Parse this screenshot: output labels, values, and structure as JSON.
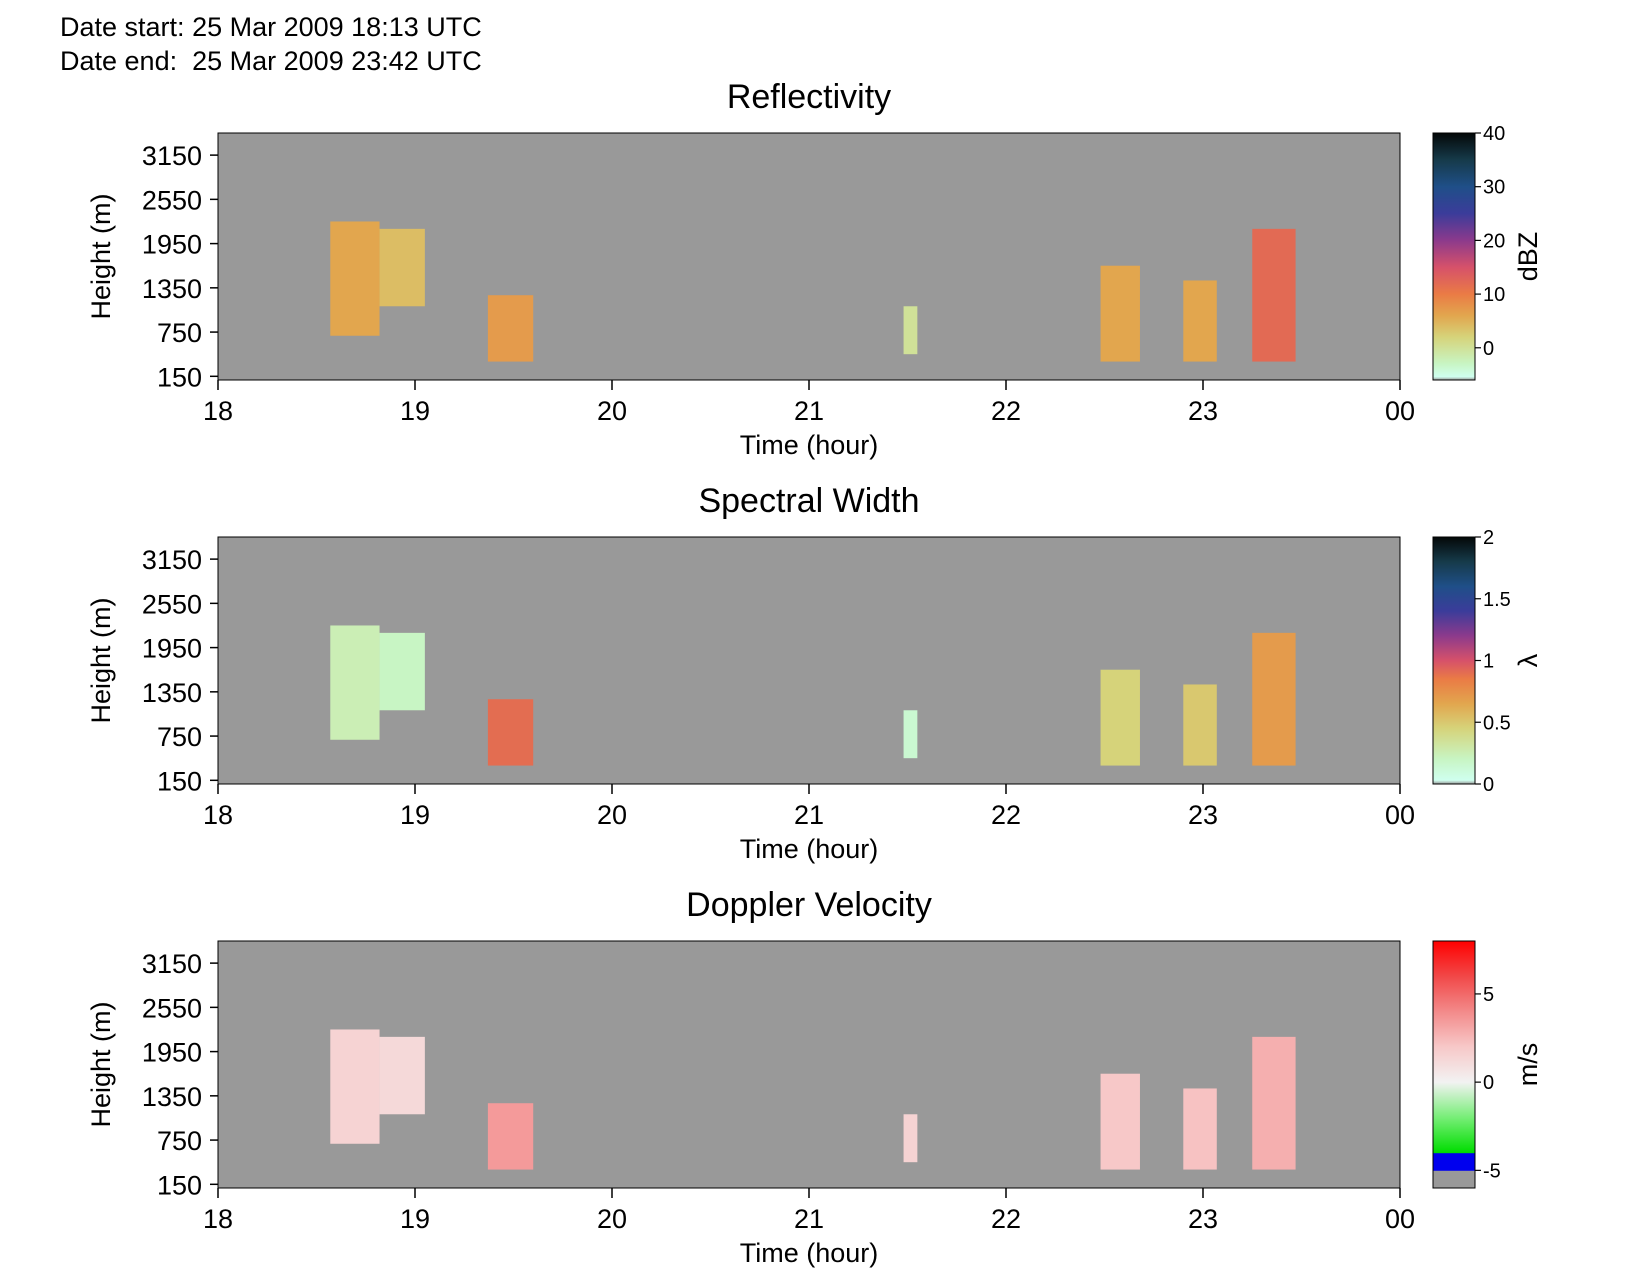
{
  "header": {
    "start_label": "Date start:",
    "start_value": "25 Mar 2009 18:13 UTC",
    "end_label": "Date end:",
    "end_value": "25 Mar 2009 23:42 UTC"
  },
  "colors": {
    "background": "#999999",
    "frame": "#000000",
    "no_data": "#999999"
  },
  "chart_data": [
    {
      "type": "heatmap",
      "title": "Reflectivity",
      "xlabel": "Time (hour)",
      "ylabel": "Height (m)",
      "xticks": [
        "18",
        "19",
        "20",
        "21",
        "22",
        "23",
        "00"
      ],
      "yticks": [
        "3150",
        "2550",
        "1950",
        "1350",
        "750",
        "150"
      ],
      "xlim": [
        18,
        24
      ],
      "ylim": [
        100,
        3450
      ],
      "colorbar": {
        "label": "dBZ",
        "ticks": [
          "40",
          "30",
          "20",
          "10",
          "0"
        ],
        "range": [
          -6,
          40
        ],
        "stops": [
          {
            "v": -6,
            "c": "#999999"
          },
          {
            "v": -5.4,
            "c": "#cfffef"
          },
          {
            "v": -3,
            "c": "#c8f5c4"
          },
          {
            "v": 2,
            "c": "#d6d37a"
          },
          {
            "v": 6,
            "c": "#e2a64e"
          },
          {
            "v": 10,
            "c": "#ea7b45"
          },
          {
            "v": 15,
            "c": "#d6516a"
          },
          {
            "v": 20,
            "c": "#8c3a8c"
          },
          {
            "v": 25,
            "c": "#3b3c9a"
          },
          {
            "v": 30,
            "c": "#1f4f88"
          },
          {
            "v": 35,
            "c": "#163a4a"
          },
          {
            "v": 40,
            "c": "#040808"
          }
        ]
      },
      "echo_regions": [
        {
          "t_start": 18.57,
          "t_end": 18.82,
          "h_bottom": 700,
          "h_top": 2250,
          "value": 6
        },
        {
          "t_start": 18.82,
          "t_end": 19.05,
          "h_bottom": 1100,
          "h_top": 2150,
          "value": 4
        },
        {
          "t_start": 19.37,
          "t_end": 19.6,
          "h_bottom": 350,
          "h_top": 1250,
          "value": 7
        },
        {
          "t_start": 21.48,
          "t_end": 21.55,
          "h_bottom": 450,
          "h_top": 1100,
          "value": 0
        },
        {
          "t_start": 22.48,
          "t_end": 22.68,
          "h_bottom": 350,
          "h_top": 1650,
          "value": 6
        },
        {
          "t_start": 22.9,
          "t_end": 23.07,
          "h_bottom": 350,
          "h_top": 1450,
          "value": 6
        },
        {
          "t_start": 23.25,
          "t_end": 23.47,
          "h_bottom": 350,
          "h_top": 2150,
          "value": 12
        }
      ]
    },
    {
      "type": "heatmap",
      "title": "Spectral Width",
      "xlabel": "Time (hour)",
      "ylabel": "Height (m)",
      "xticks": [
        "18",
        "19",
        "20",
        "21",
        "22",
        "23",
        "00"
      ],
      "yticks": [
        "3150",
        "2550",
        "1950",
        "1350",
        "750",
        "150"
      ],
      "xlim": [
        18,
        24
      ],
      "ylim": [
        100,
        3450
      ],
      "colorbar": {
        "label": "λ",
        "ticks": [
          "2",
          "1.5",
          "1",
          "0.5",
          "0"
        ],
        "range": [
          0,
          2
        ],
        "stops": [
          {
            "v": 0,
            "c": "#999999"
          },
          {
            "v": 0.03,
            "c": "#cfffef"
          },
          {
            "v": 0.2,
            "c": "#c8f5c4"
          },
          {
            "v": 0.45,
            "c": "#d6d37a"
          },
          {
            "v": 0.65,
            "c": "#e2a64e"
          },
          {
            "v": 0.85,
            "c": "#ea7b45"
          },
          {
            "v": 1.0,
            "c": "#d6516a"
          },
          {
            "v": 1.2,
            "c": "#8c3a8c"
          },
          {
            "v": 1.4,
            "c": "#3b3c9a"
          },
          {
            "v": 1.6,
            "c": "#1f4f88"
          },
          {
            "v": 1.8,
            "c": "#163a4a"
          },
          {
            "v": 2.0,
            "c": "#040808"
          }
        ]
      },
      "echo_regions": [
        {
          "t_start": 18.57,
          "t_end": 18.82,
          "h_bottom": 700,
          "h_top": 2250,
          "value": 0.25
        },
        {
          "t_start": 18.82,
          "t_end": 19.05,
          "h_bottom": 1100,
          "h_top": 2150,
          "value": 0.2
        },
        {
          "t_start": 19.37,
          "t_end": 19.6,
          "h_bottom": 350,
          "h_top": 1250,
          "value": 0.9
        },
        {
          "t_start": 21.48,
          "t_end": 21.55,
          "h_bottom": 450,
          "h_top": 1100,
          "value": 0.15
        },
        {
          "t_start": 22.48,
          "t_end": 22.68,
          "h_bottom": 350,
          "h_top": 1650,
          "value": 0.45
        },
        {
          "t_start": 22.9,
          "t_end": 23.07,
          "h_bottom": 350,
          "h_top": 1450,
          "value": 0.5
        },
        {
          "t_start": 23.25,
          "t_end": 23.47,
          "h_bottom": 350,
          "h_top": 2150,
          "value": 0.7
        }
      ]
    },
    {
      "type": "heatmap",
      "title": "Doppler Velocity",
      "xlabel": "Time (hour)",
      "ylabel": "Height (m)",
      "xticks": [
        "18",
        "19",
        "20",
        "21",
        "22",
        "23",
        "00"
      ],
      "yticks": [
        "3150",
        "2550",
        "1950",
        "1350",
        "750",
        "150"
      ],
      "xlim": [
        18,
        24
      ],
      "ylim": [
        100,
        3450
      ],
      "colorbar": {
        "label": "m/s",
        "ticks": [
          "5",
          "0",
          "-5"
        ],
        "range": [
          -6,
          8
        ],
        "stops": [
          {
            "v": -6,
            "c": "#999999"
          },
          {
            "v": -5.05,
            "c": "#999999"
          },
          {
            "v": -5,
            "c": "#0000ee"
          },
          {
            "v": -4.05,
            "c": "#0000ee"
          },
          {
            "v": -4,
            "c": "#00dd00"
          },
          {
            "v": -2,
            "c": "#77ee77"
          },
          {
            "v": 0,
            "c": "#f2f2f2"
          },
          {
            "v": 2,
            "c": "#f7c8c8"
          },
          {
            "v": 4,
            "c": "#f38a8a"
          },
          {
            "v": 6,
            "c": "#f14848"
          },
          {
            "v": 8,
            "c": "#ff0000"
          }
        ]
      },
      "echo_regions": [
        {
          "t_start": 18.57,
          "t_end": 18.82,
          "h_bottom": 700,
          "h_top": 2250,
          "value": 1.5
        },
        {
          "t_start": 18.82,
          "t_end": 19.05,
          "h_bottom": 1100,
          "h_top": 2150,
          "value": 1.2
        },
        {
          "t_start": 19.37,
          "t_end": 19.6,
          "h_bottom": 350,
          "h_top": 1250,
          "value": 3.5
        },
        {
          "t_start": 21.48,
          "t_end": 21.55,
          "h_bottom": 450,
          "h_top": 1100,
          "value": 1.5
        },
        {
          "t_start": 22.48,
          "t_end": 22.68,
          "h_bottom": 350,
          "h_top": 1650,
          "value": 2
        },
        {
          "t_start": 22.9,
          "t_end": 23.07,
          "h_bottom": 350,
          "h_top": 1450,
          "value": 2.2
        },
        {
          "t_start": 23.25,
          "t_end": 23.47,
          "h_bottom": 350,
          "h_top": 2150,
          "value": 2.8
        }
      ]
    }
  ]
}
